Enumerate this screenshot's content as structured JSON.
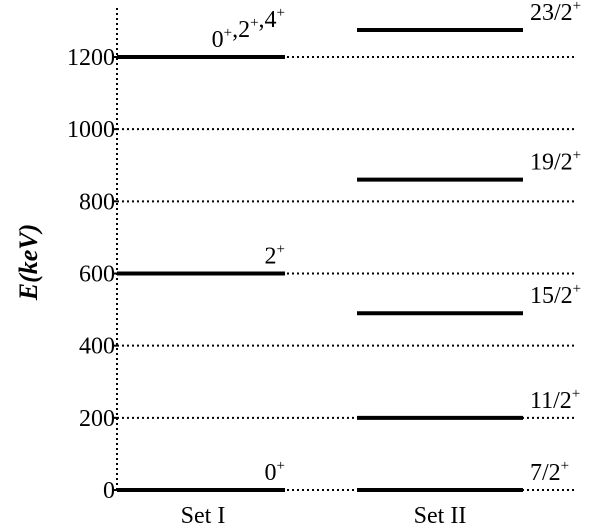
{
  "chart_data": {
    "type": "level-scheme",
    "ylabel": "E(keV)",
    "ylim": [
      0,
      1300
    ],
    "y_ticks": [
      {
        "value": 0,
        "label": "0"
      },
      {
        "value": 200,
        "label": "200"
      },
      {
        "value": 400,
        "label": "400"
      },
      {
        "value": 600,
        "label": "600"
      },
      {
        "value": 800,
        "label": "800"
      },
      {
        "value": 1000,
        "label": "1000"
      },
      {
        "value": 1200,
        "label": "1200"
      }
    ],
    "grid": "dotted",
    "columns": [
      {
        "label": "Set I",
        "levels": [
          {
            "energy": 0,
            "label": "0",
            "sup": "+"
          },
          {
            "energy": 600,
            "label": "2",
            "sup": "+"
          },
          {
            "energy": 1200,
            "label": "0+,2+,4+",
            "parts": [
              {
                "t": "0",
                "s": "+"
              },
              {
                "t": ",2",
                "s": "+"
              },
              {
                "t": ",4",
                "s": "+"
              }
            ]
          }
        ]
      },
      {
        "label": "Set II",
        "levels": [
          {
            "energy": 0,
            "label": "7/2",
            "sup": "+"
          },
          {
            "energy": 200,
            "label": "11/2",
            "sup": "+"
          },
          {
            "energy": 490,
            "label": "15/2",
            "sup": "+"
          },
          {
            "energy": 860,
            "label": "19/2",
            "sup": "+"
          },
          {
            "energy": 1275,
            "label": "23/2",
            "sup": "+"
          }
        ]
      }
    ]
  }
}
